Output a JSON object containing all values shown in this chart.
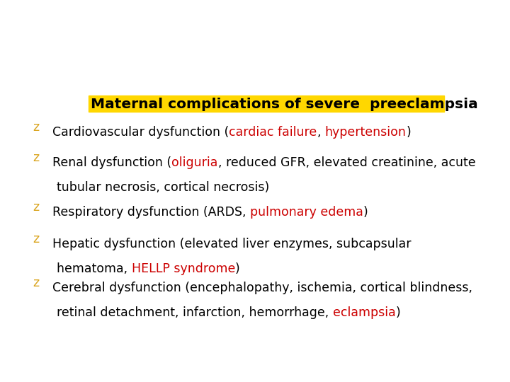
{
  "background_color": "#ffffff",
  "title": "Maternal complications of severe  preeclampsia",
  "title_fontsize": 14.5,
  "title_color": "#000000",
  "highlight_bar_color": "#FFD700",
  "bullet_char": "z",
  "bullet_color": "#DAA520",
  "text_color": "#000000",
  "red_color": "#CC0000",
  "font_size": 12.5,
  "font_family": "DejaVu Sans",
  "bullets": [
    {
      "segments": [
        {
          "text": "Cardiovascular dysfunction (",
          "color": "#000000"
        },
        {
          "text": "cardiac failure",
          "color": "#CC0000"
        },
        {
          "text": ", ",
          "color": "#000000"
        },
        {
          "text": "hypertension",
          "color": "#CC0000"
        },
        {
          "text": ")",
          "color": "#000000"
        }
      ]
    },
    {
      "segments": [
        {
          "text": "Renal dysfunction (",
          "color": "#000000"
        },
        {
          "text": "oliguria",
          "color": "#CC0000"
        },
        {
          "text": ", reduced GFR, elevated creatinine, acute",
          "color": "#000000"
        }
      ],
      "continuation": [
        {
          "text": "tubular necrosis, cortical necrosis)",
          "color": "#000000"
        }
      ]
    },
    {
      "segments": [
        {
          "text": "Respiratory dysfunction (ARDS, ",
          "color": "#000000"
        },
        {
          "text": "pulmonary edema",
          "color": "#CC0000"
        },
        {
          "text": ")",
          "color": "#000000"
        }
      ]
    },
    {
      "segments": [
        {
          "text": "Hepatic dysfunction (elevated liver enzymes, subcapsular",
          "color": "#000000"
        }
      ],
      "continuation": [
        {
          "text": "hematoma, ",
          "color": "#000000"
        },
        {
          "text": "HELLP syndrome",
          "color": "#CC0000"
        },
        {
          "text": ")",
          "color": "#000000"
        }
      ]
    },
    {
      "segments": [
        {
          "text": "Cerebral dysfunction (encephalopathy, ischemia, cortical blindness,",
          "color": "#000000"
        }
      ],
      "continuation": [
        {
          "text": "retinal detachment, infarction, hemorrhage, ",
          "color": "#000000"
        },
        {
          "text": "eclampsia",
          "color": "#CC0000"
        },
        {
          "text": ")",
          "color": "#000000"
        }
      ]
    }
  ]
}
